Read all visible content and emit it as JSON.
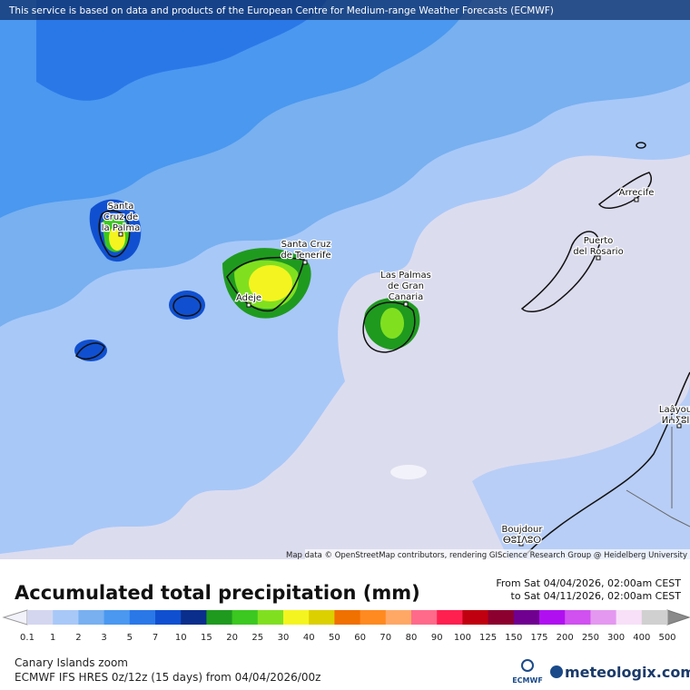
{
  "banner": "This service is based on data and products of the European Centre for Medium-range Weather Forecasts (ECMWF)",
  "map": {
    "places": [
      {
        "lines": [
          "Santa",
          "Cruz de",
          "la Palma"
        ]
      },
      {
        "lines": [
          "Santa Cruz",
          "de Tenerife"
        ]
      },
      {
        "lines": [
          "Adeje"
        ]
      },
      {
        "lines": [
          "Las Palmas",
          "de Gran",
          "Canaria"
        ]
      },
      {
        "lines": [
          "Puerto",
          "del Rosario"
        ]
      },
      {
        "lines": [
          "Arrecife"
        ]
      },
      {
        "lines": [
          "Laâyou",
          "ⵍⵄⵢⵓⵏ"
        ]
      },
      {
        "lines": [
          "Boujdour",
          "ⴱⵓⵊⴷⵓⵔ"
        ]
      }
    ],
    "attribution": "Map data © OpenStreetMap contributors, rendering GIScience Research Group @ Heidelberg University"
  },
  "legend": {
    "title": "Accumulated total precipitation (mm)",
    "from": "From Sat 04/04/2026, 02:00am CEST",
    "to": "to Sat 04/11/2026, 02:00am CEST",
    "labels": [
      0.1,
      1,
      2,
      3,
      5,
      7,
      10,
      15,
      20,
      25,
      30,
      40,
      50,
      60,
      70,
      80,
      90,
      100,
      125,
      150,
      175,
      200,
      250,
      300,
      400,
      500
    ],
    "colors": [
      "#d4d6f0",
      "#a8c8f8",
      "#78b0f0",
      "#4a98f0",
      "#2a78e8",
      "#1050d0",
      "#0a2e8c",
      "#1f9a1f",
      "#3cc820",
      "#80e020",
      "#f4f420",
      "#dcd000",
      "#f07000",
      "#ff8a20",
      "#ffa866",
      "#ff6a8a",
      "#ff2050",
      "#c00010",
      "#8c0030",
      "#700090",
      "#b010f0",
      "#d050f0",
      "#e498f0",
      "#f8e0f8",
      "#d0d0d0"
    ],
    "low_color": "#f2f2fa",
    "high_color": "#8a8a8a"
  },
  "footer": {
    "region": "Canary Islands zoom",
    "model": "ECMWF IFS HRES 0z/12z (15 days) from 04/04/2026/00z",
    "ecmwf": "ECMWF",
    "brand": "meteologix.com"
  }
}
